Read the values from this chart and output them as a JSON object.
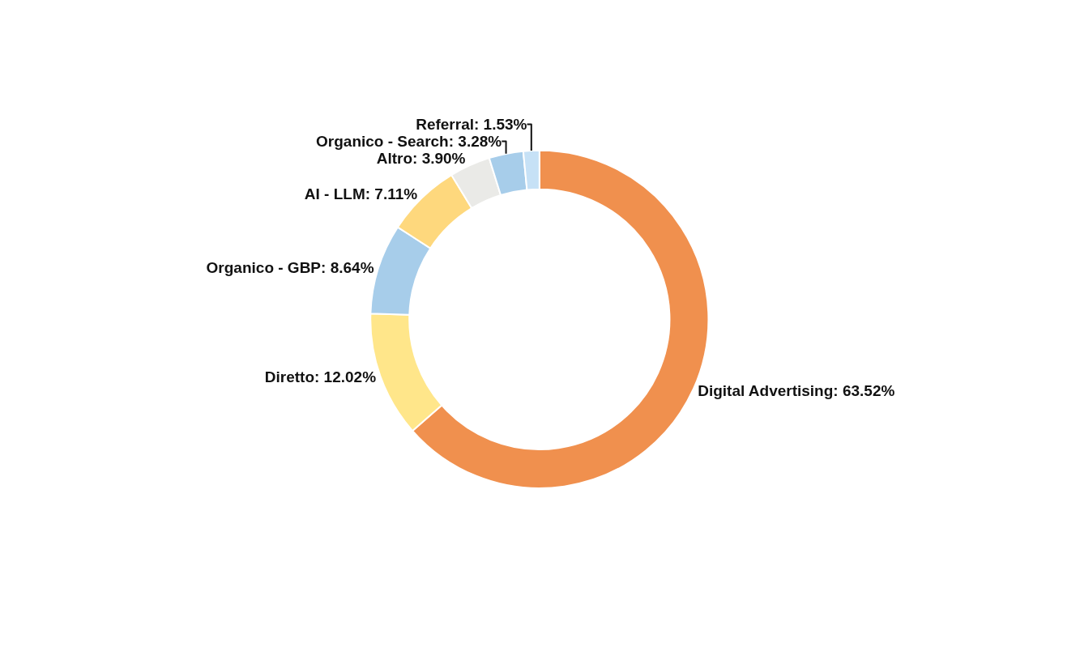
{
  "chart_data": {
    "type": "donut",
    "categories": [
      "Digital Advertising",
      "Diretto",
      "Organico - GBP",
      "AI - LLM",
      "Altro",
      "Organico - Search",
      "Referral"
    ],
    "values": [
      63.52,
      12.02,
      8.64,
      7.11,
      3.9,
      3.28,
      1.53
    ],
    "value_labels": [
      "63.52%",
      "12.02%",
      "8.64%",
      "7.11%",
      "3.90%",
      "3.28%",
      "1.53%"
    ],
    "colors": [
      "#f0904e",
      "#ffe68a",
      "#a7cdea",
      "#fed87d",
      "#eaeae7",
      "#a7cdea",
      "#c6e1f6"
    ],
    "legend": false
  }
}
